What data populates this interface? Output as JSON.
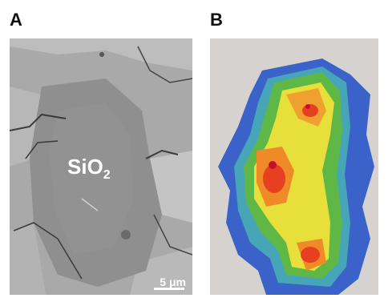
{
  "panels": {
    "a": {
      "letter": "A",
      "mineral": "SiO",
      "mineral_sub": "2",
      "scale_label": "5 μm"
    },
    "b": {
      "letter": "B"
    }
  }
}
